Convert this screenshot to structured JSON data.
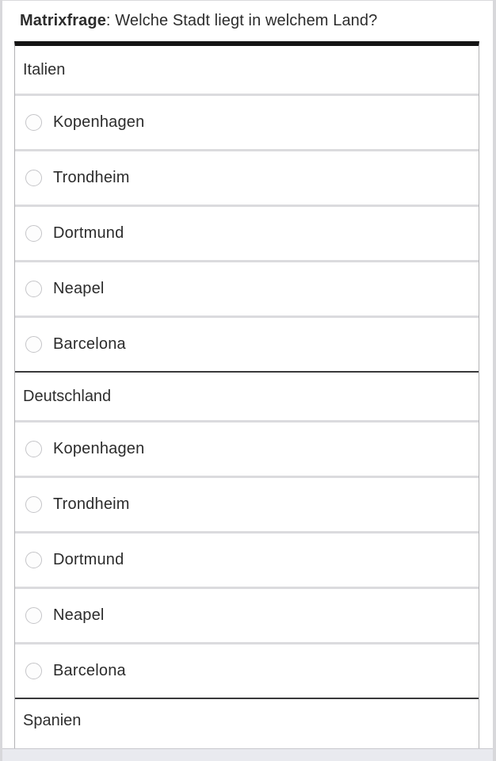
{
  "question": {
    "type_label": "Matrixfrage",
    "rest": ": Welche Stadt liegt in welchem Land?",
    "full": "Matrixfrage: Welche Stadt liegt in welchem Land?"
  },
  "matrix": {
    "groups": [
      {
        "label": "Italien",
        "options": [
          {
            "label": "Kopenhagen",
            "selected": false
          },
          {
            "label": "Trondheim",
            "selected": false
          },
          {
            "label": "Dortmund",
            "selected": false
          },
          {
            "label": "Neapel",
            "selected": false
          },
          {
            "label": "Barcelona",
            "selected": false
          }
        ]
      },
      {
        "label": "Deutschland",
        "options": [
          {
            "label": "Kopenhagen",
            "selected": false
          },
          {
            "label": "Trondheim",
            "selected": false
          },
          {
            "label": "Dortmund",
            "selected": false
          },
          {
            "label": "Neapel",
            "selected": false
          },
          {
            "label": "Barcelona",
            "selected": false
          }
        ]
      },
      {
        "label": "Spanien",
        "options": []
      }
    ]
  },
  "colors": {
    "table_top_border": "#141414",
    "section_divider": "#39393b",
    "row_divider": "#dbdbde",
    "text": "#2d2d2d",
    "bottom_band": "#e9eaef"
  }
}
